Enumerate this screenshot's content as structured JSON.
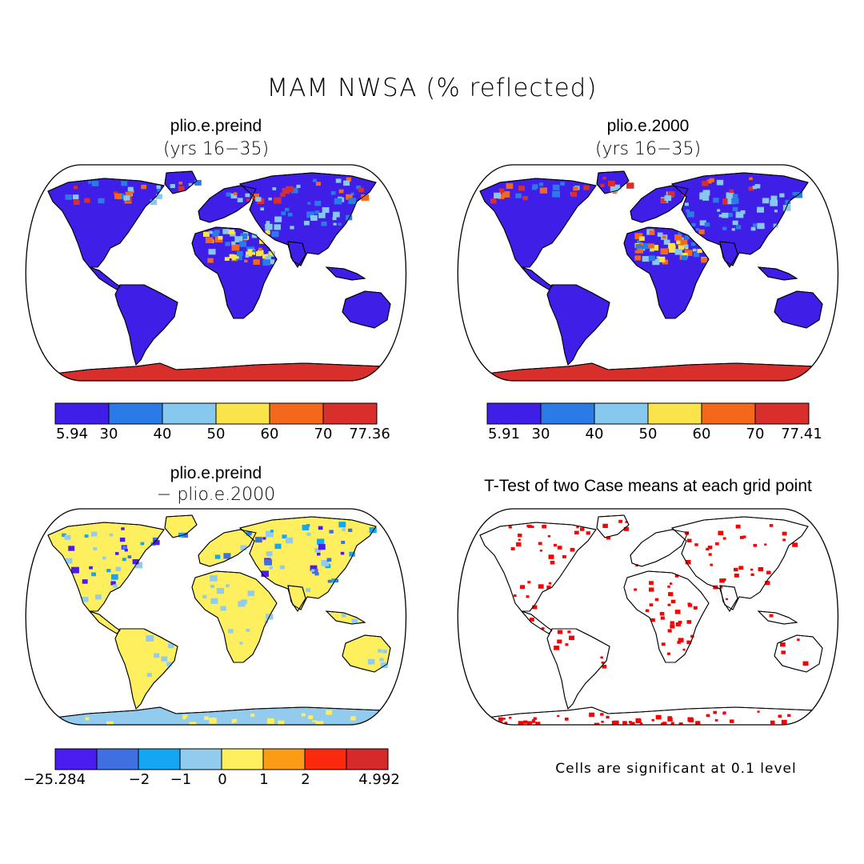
{
  "figure": {
    "title": "MAM NWSA (% reflected)"
  },
  "panels": [
    {
      "title": "plio.e.preind",
      "subtitle": "(yrs 16−35)"
    },
    {
      "title": "plio.e.2000",
      "subtitle": "(yrs 16−35)"
    },
    {
      "title": "plio.e.preind",
      "subtitle": "− plio.e.2000"
    },
    {
      "title": "T-Test of two Case means at each grid point"
    }
  ],
  "colorbars": {
    "preind": {
      "colors": [
        "#3f1fe8",
        "#2a7ae8",
        "#86c8ee",
        "#fbe44a",
        "#f4681c",
        "#d82e2c"
      ],
      "ticks": [
        "5.94",
        "30",
        "40",
        "50",
        "60",
        "70",
        "77.36"
      ]
    },
    "y2000": {
      "colors": [
        "#3f1fe8",
        "#2a7ae8",
        "#86c8ee",
        "#fbe44a",
        "#f4681c",
        "#d82e2c"
      ],
      "ticks": [
        "5.91",
        "30",
        "40",
        "50",
        "60",
        "70",
        "77.41"
      ]
    },
    "diff": {
      "colors": [
        "#4b1cf0",
        "#3f6fe0",
        "#15a6f3",
        "#92cbee",
        "#fdef5e",
        "#fb9c17",
        "#fb2a0c",
        "#d62a2a"
      ],
      "ticks": [
        "−25.284",
        "−2",
        "−1",
        "0",
        "1",
        "2",
        "4.992"
      ]
    }
  },
  "ttest_note": "Cells are significant at 0.1 level",
  "map_colors": {
    "land_base": "#3f1fe8",
    "antarctica": "#d82e2c",
    "diff_base": "#fdef5e",
    "diff_light": "#92cbee",
    "signif": "#fb0000"
  }
}
